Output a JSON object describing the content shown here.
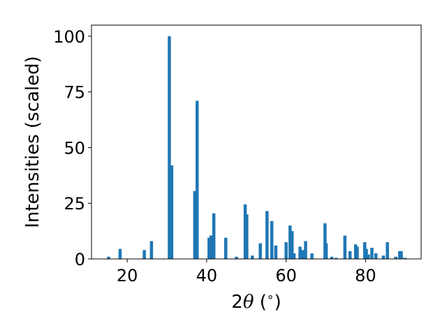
{
  "chart_data": {
    "type": "bar",
    "title": "",
    "xlabel": "2θ (°)",
    "xlabel_parts": {
      "main": "2",
      "symbol": "θ",
      "unit_open": " (",
      "unit_sup": "∘",
      "unit_close": ")"
    },
    "ylabel": "Intensities (scaled)",
    "xlim": [
      11,
      94
    ],
    "ylim": [
      0,
      105
    ],
    "xticks": [
      20,
      40,
      60,
      80
    ],
    "yticks": [
      0,
      25,
      50,
      75,
      100
    ],
    "grid": false,
    "bar_color": "#1f77b4",
    "x": [
      15.3,
      18.2,
      24.3,
      26.1,
      30.6,
      31.2,
      37.0,
      37.6,
      40.6,
      41.1,
      41.8,
      44.8,
      47.5,
      49.7,
      50.1,
      51.5,
      53.5,
      55.2,
      56.4,
      57.4,
      60.0,
      61.0,
      61.5,
      62.0,
      63.5,
      64.2,
      64.9,
      66.5,
      69.8,
      70.1,
      71.5,
      72.6,
      74.8,
      76.1,
      77.5,
      77.9,
      79.8,
      80.2,
      80.7,
      81.6,
      82.6,
      84.5,
      85.5,
      87.6,
      88.6,
      89.0,
      89.9
    ],
    "values": [
      1,
      4.5,
      4,
      8,
      100,
      42,
      30.5,
      71,
      9.5,
      10.5,
      20.5,
      9.5,
      1,
      24.5,
      20,
      1.5,
      7,
      21.5,
      17,
      6,
      7.5,
      15,
      12.5,
      2.5,
      5.5,
      4,
      8,
      2.5,
      16,
      7,
      1,
      0.5,
      10.5,
      3.5,
      6.5,
      5.5,
      7.5,
      4.5,
      2,
      5,
      2.5,
      1.5,
      7.5,
      1,
      3.5,
      3.5,
      0.5
    ]
  }
}
